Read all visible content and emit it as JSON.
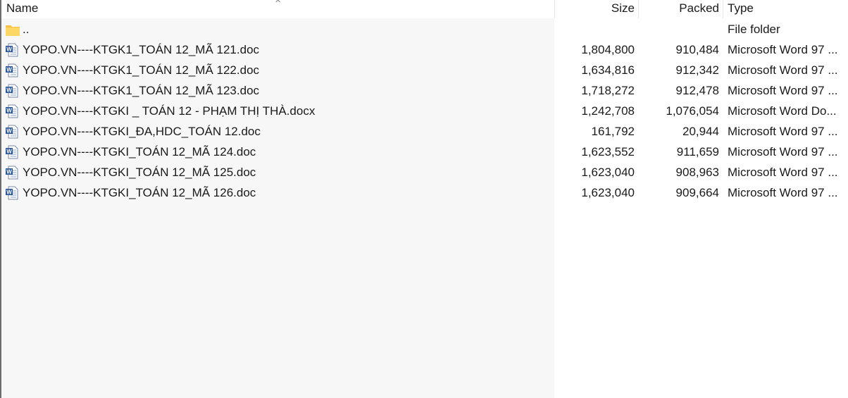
{
  "columns": {
    "name": "Name",
    "size": "Size",
    "packed": "Packed",
    "type": "Type"
  },
  "rows": [
    {
      "icon": "folder-icon",
      "name": "..",
      "size": "",
      "packed": "",
      "type": "File folder"
    },
    {
      "icon": "word-doc-icon",
      "name": "YOPO.VN----KTGK1_TOÁN 12_MÃ 121.doc",
      "size": "1,804,800",
      "packed": "910,484",
      "type": "Microsoft Word 97 ..."
    },
    {
      "icon": "word-doc-icon",
      "name": "YOPO.VN----KTGK1_TOÁN 12_MÃ 122.doc",
      "size": "1,634,816",
      "packed": "912,342",
      "type": "Microsoft Word 97 ..."
    },
    {
      "icon": "word-doc-icon",
      "name": "YOPO.VN----KTGK1_TOÁN 12_MÃ 123.doc",
      "size": "1,718,272",
      "packed": "912,478",
      "type": "Microsoft Word 97 ..."
    },
    {
      "icon": "word-docx-icon",
      "name": "YOPO.VN----KTGKI _ TOÁN 12 - PHẠM THỊ THÀ.docx",
      "size": "1,242,708",
      "packed": "1,076,054",
      "type": "Microsoft Word Do..."
    },
    {
      "icon": "word-doc-icon",
      "name": "YOPO.VN----KTGKI_ĐA,HDC_TOÁN 12.doc",
      "size": "161,792",
      "packed": "20,944",
      "type": "Microsoft Word 97 ..."
    },
    {
      "icon": "word-doc-icon",
      "name": "YOPO.VN----KTGKI_TOÁN 12_MÃ 124.doc",
      "size": "1,623,552",
      "packed": "911,659",
      "type": "Microsoft Word 97 ..."
    },
    {
      "icon": "word-doc-icon",
      "name": "YOPO.VN----KTGKI_TOÁN 12_MÃ 125.doc",
      "size": "1,623,040",
      "packed": "908,963",
      "type": "Microsoft Word 97 ..."
    },
    {
      "icon": "word-doc-icon",
      "name": "YOPO.VN----KTGKI_TOÁN 12_MÃ 126.doc",
      "size": "1,623,040",
      "packed": "909,664",
      "type": "Microsoft Word 97 ..."
    }
  ]
}
